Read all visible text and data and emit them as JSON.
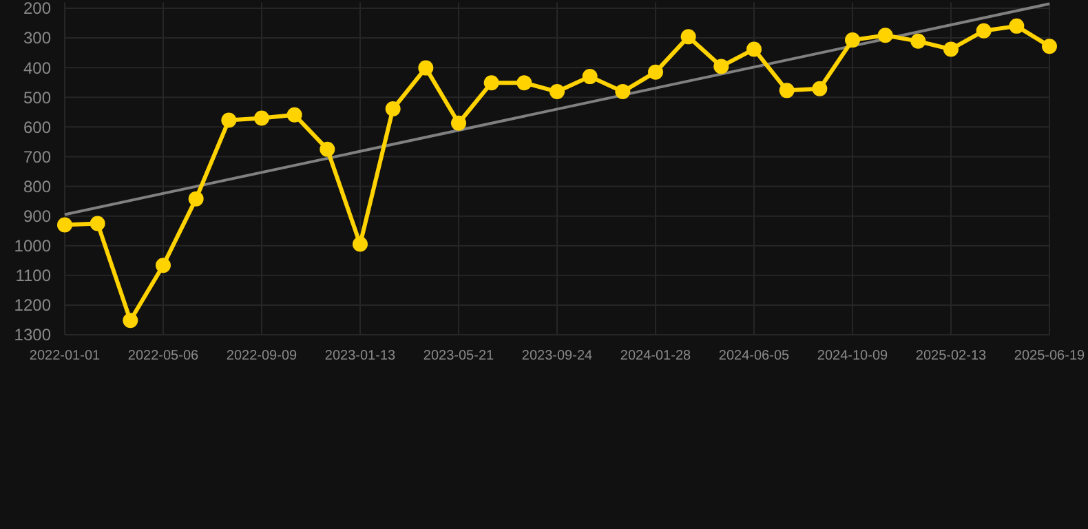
{
  "chart_data": {
    "type": "line",
    "categories": [
      "2022-01-01",
      null,
      null,
      "2022-05-06",
      null,
      null,
      "2022-09-09",
      null,
      null,
      "2023-01-13",
      null,
      null,
      "2023-05-21",
      null,
      null,
      "2023-09-24",
      null,
      null,
      "2024-01-28",
      null,
      null,
      "2024-06-05",
      null,
      null,
      "2024-10-09",
      null,
      null,
      "2025-02-13",
      null,
      null,
      "2025-06-19"
    ],
    "series": [
      {
        "color": "#ffd300",
        "marker": "circle",
        "values": [
          930,
          925,
          1252,
          1066,
          842,
          577,
          570,
          559,
          675,
          995,
          539,
          401,
          587,
          451,
          451,
          481,
          430,
          481,
          415,
          296,
          396,
          338,
          477,
          471,
          307,
          291,
          311,
          338,
          276,
          260,
          328
        ]
      },
      {
        "type": "line",
        "color": "#808080",
        "marker": "none",
        "values": [
          895,
          null,
          null,
          null,
          null,
          null,
          null,
          null,
          null,
          null,
          null,
          null,
          null,
          null,
          null,
          null,
          null,
          null,
          null,
          null,
          null,
          null,
          null,
          null,
          null,
          null,
          null,
          null,
          null,
          null,
          185
        ]
      }
    ],
    "ylim": [
      1300,
      180
    ],
    "yticks": [
      200,
      300,
      400,
      500,
      600,
      700,
      800,
      900,
      1000,
      1100,
      1200,
      1300
    ],
    "grid": true
  }
}
